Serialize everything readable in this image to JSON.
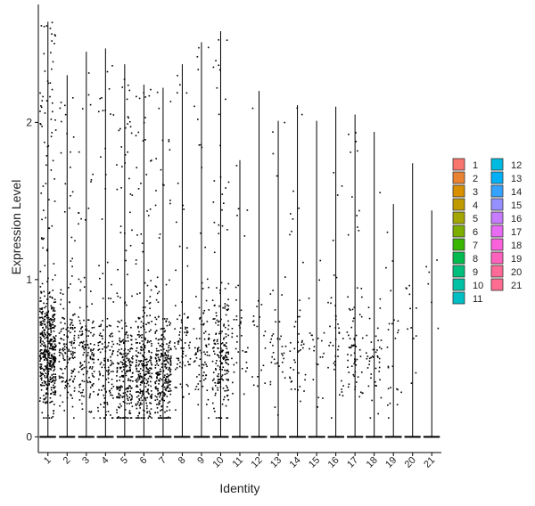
{
  "chart_data": {
    "type": "violin",
    "xlabel": "Identity",
    "ylabel": "Expression Level",
    "categories": [
      "1",
      "2",
      "3",
      "4",
      "5",
      "6",
      "7",
      "8",
      "9",
      "10",
      "11",
      "12",
      "13",
      "14",
      "15",
      "16",
      "17",
      "18",
      "19",
      "20",
      "21"
    ],
    "y_ticks": [
      0,
      1,
      2
    ],
    "ylim": [
      -0.1,
      2.75
    ],
    "max_expression": [
      2.64,
      2.3,
      2.45,
      2.47,
      2.37,
      2.24,
      2.22,
      2.37,
      2.51,
      2.58,
      1.76,
      2.2,
      2.01,
      2.11,
      2.01,
      2.1,
      2.05,
      1.94,
      1.48,
      1.74,
      1.44
    ],
    "nonzero_cells": [
      520,
      170,
      150,
      140,
      260,
      300,
      280,
      80,
      90,
      200,
      40,
      20,
      40,
      45,
      22,
      40,
      70,
      45,
      25,
      12,
      6
    ],
    "median_nonzero": [
      0.55,
      0.55,
      0.5,
      0.45,
      0.4,
      0.42,
      0.42,
      0.55,
      0.55,
      0.5,
      0.55,
      0.65,
      0.5,
      0.5,
      0.55,
      0.6,
      0.55,
      0.45,
      0.42,
      0.7,
      0.9
    ],
    "legend": {
      "position": "right",
      "colors": [
        "#F8766D",
        "#EA8331",
        "#D89000",
        "#C09B00",
        "#A3A500",
        "#7CAE00",
        "#39B600",
        "#00BB4E",
        "#00BF7D",
        "#00C1A3",
        "#00BFC4",
        "#00BAE0",
        "#00B0F6",
        "#35A2FF",
        "#9590FF",
        "#C77CFF",
        "#E76BF3",
        "#FA62DB",
        "#FF62BC",
        "#FF6A98",
        "#FF6C91"
      ]
    }
  }
}
